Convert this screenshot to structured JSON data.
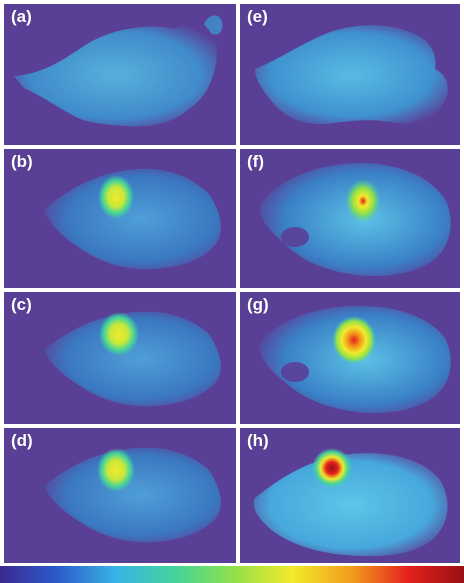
{
  "panels": [
    {
      "label": "(a)",
      "hotspot": "none"
    },
    {
      "label": "(b)",
      "hotspot": "small"
    },
    {
      "label": "(c)",
      "hotspot": "small"
    },
    {
      "label": "(d)",
      "hotspot": "small"
    },
    {
      "label": "(e)",
      "hotspot": "none"
    },
    {
      "label": "(f)",
      "hotspot": "medium"
    },
    {
      "label": "(g)",
      "hotspot": "strong"
    },
    {
      "label": "(h)",
      "hotspot": "strong"
    }
  ],
  "colors": {
    "background": "#5a3f97",
    "body_dim": "#3d8fc4",
    "body_bright": "#4fc2e3",
    "hot_green": "#8fe04a",
    "hot_yellow": "#f2ea2c",
    "hot_red": "#e3211c",
    "colorbar": [
      "#3b2a8f",
      "#2b59c8",
      "#39b3e6",
      "#45d49a",
      "#8fe04a",
      "#f2ea2c",
      "#f39a1c",
      "#e3211c",
      "#9a0f14"
    ]
  }
}
